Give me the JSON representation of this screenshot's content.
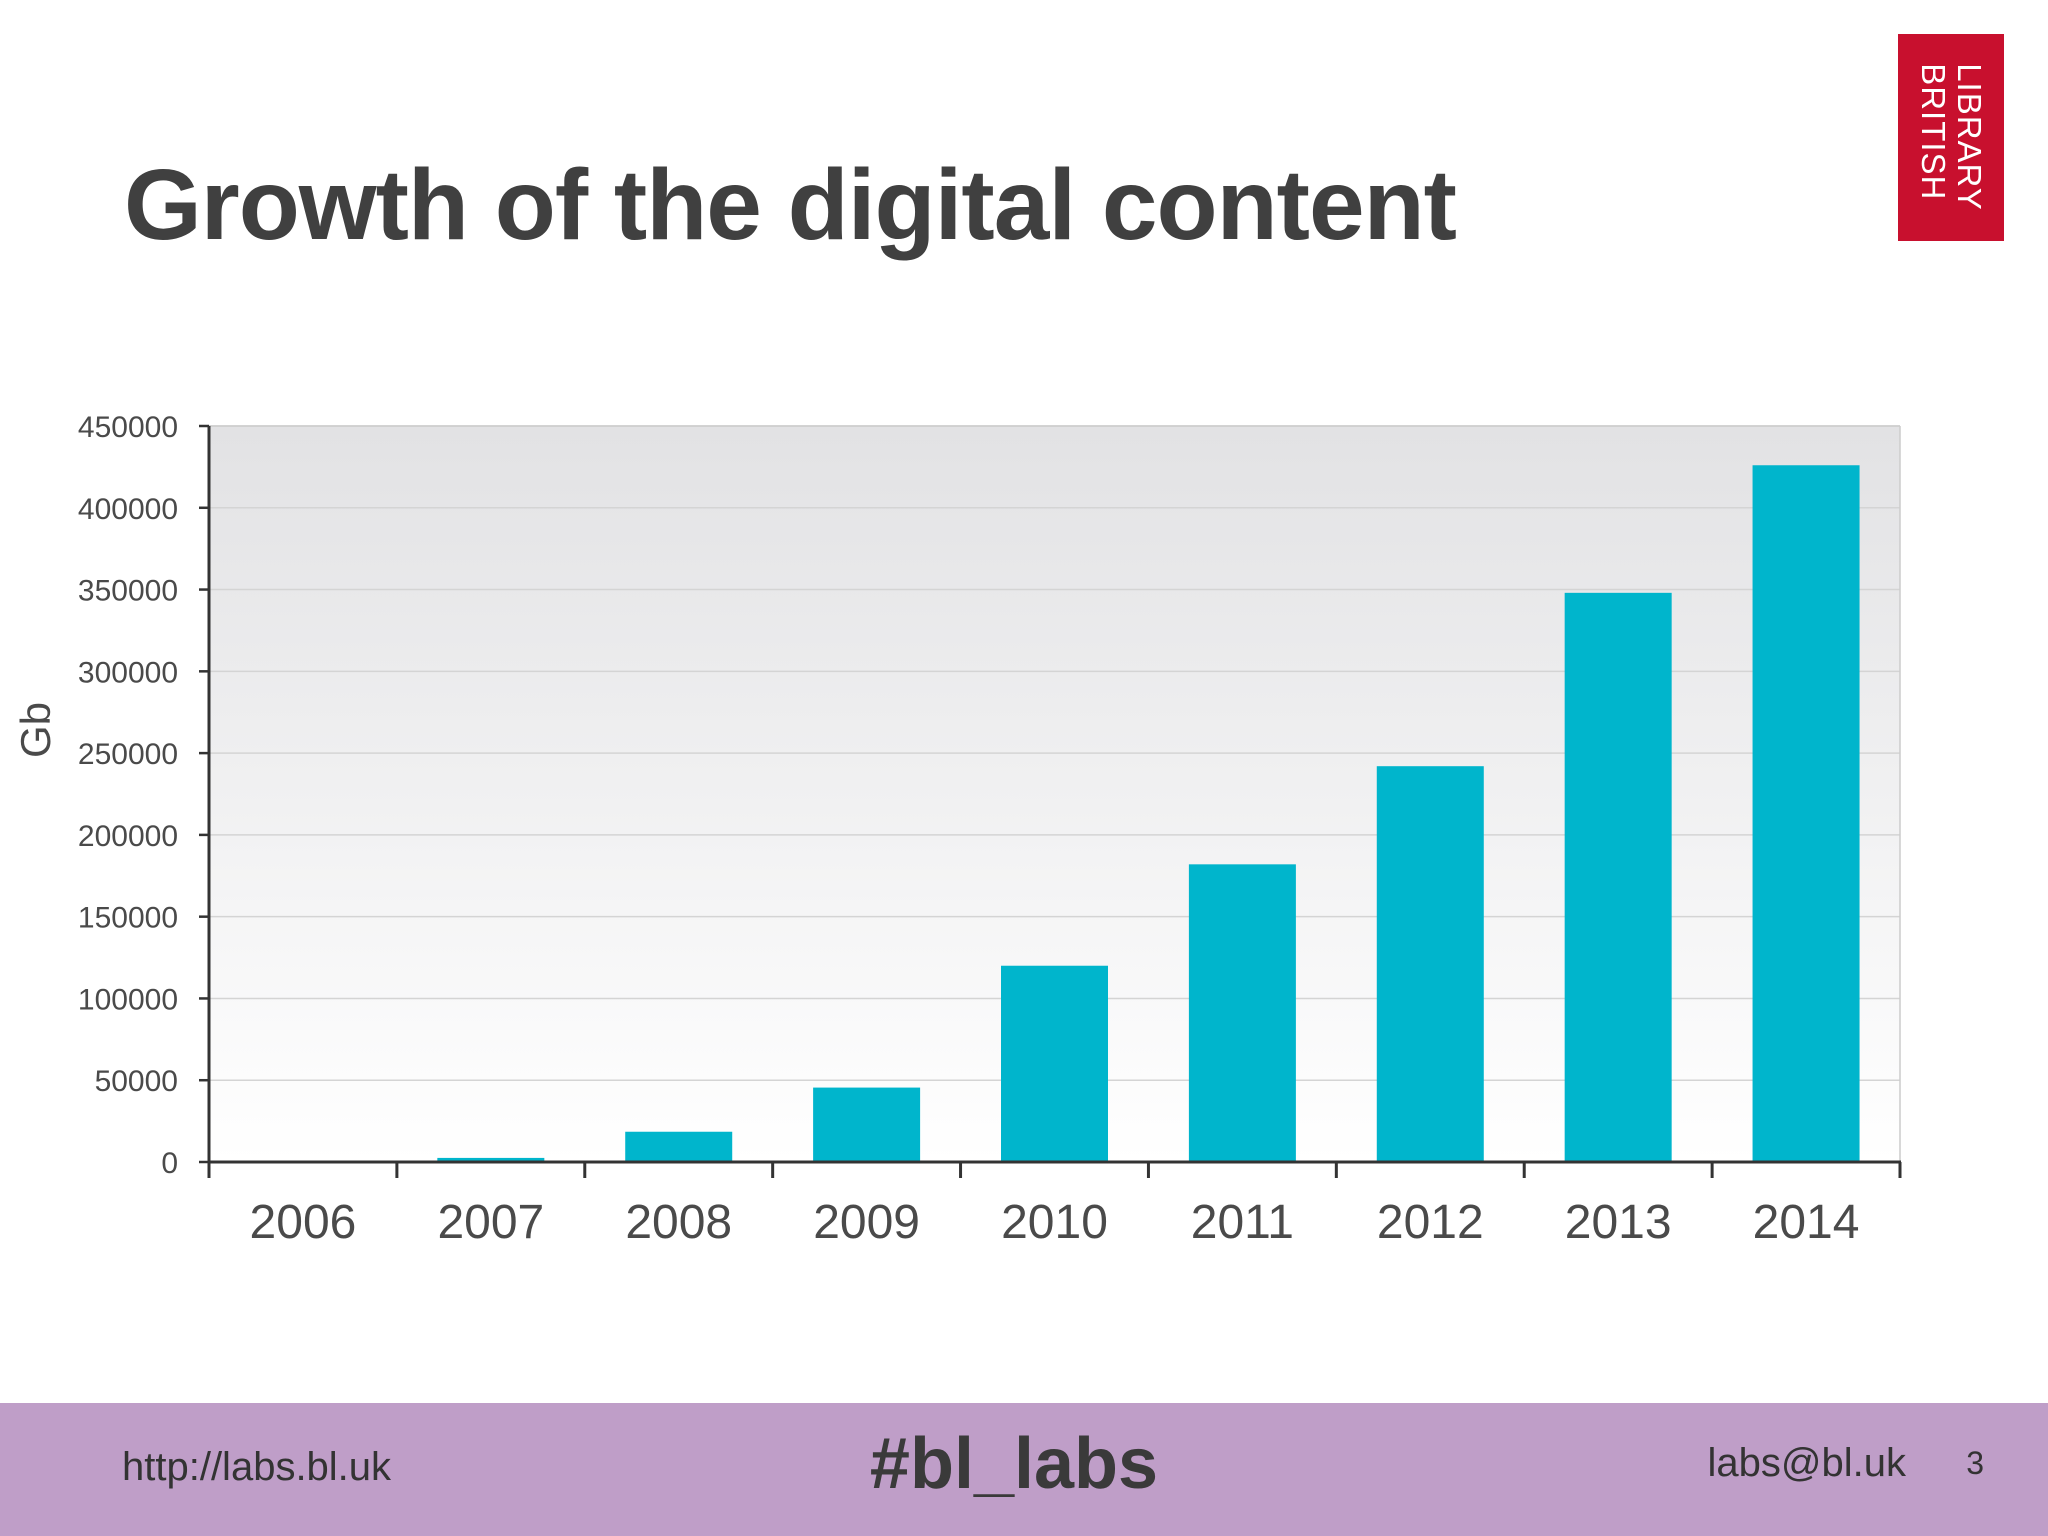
{
  "slide": {
    "title": "Growth of the digital content",
    "logo": {
      "line1": "BRITISH",
      "line2": "LIBRARY",
      "color": "#c8102e"
    }
  },
  "footer": {
    "url": "http://labs.bl.uk",
    "hashtag": "#bl_labs",
    "email": "labs@bl.uk",
    "page_number": "3",
    "background": "#bf9ec8"
  },
  "chart_data": {
    "type": "bar",
    "title": "",
    "xlabel": "",
    "ylabel": "Gb",
    "categories": [
      "2006",
      "2007",
      "2008",
      "2009",
      "2010",
      "2011",
      "2012",
      "2013",
      "2014"
    ],
    "values": [
      0,
      2500,
      18500,
      45500,
      120000,
      182000,
      242000,
      348000,
      426000
    ],
    "ylim": [
      0,
      450000
    ],
    "yticks": [
      0,
      50000,
      100000,
      150000,
      200000,
      250000,
      300000,
      350000,
      400000,
      450000
    ],
    "grid": true,
    "bar_color": "#00b5cc"
  }
}
